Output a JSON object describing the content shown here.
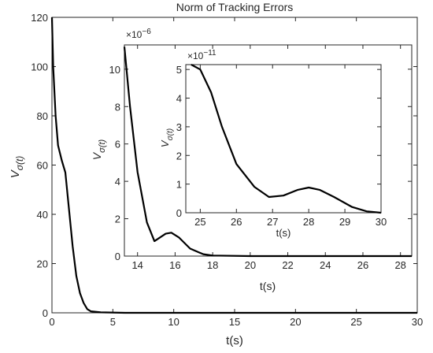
{
  "chart_data": [
    {
      "type": "line",
      "title": "Norm of Tracking Errors",
      "xlabel": "t(s)",
      "ylabel": "V",
      "ylabel_subscript": "σ(t)",
      "x": [
        0,
        0.1,
        0.3,
        0.5,
        0.8,
        1.1,
        1.4,
        1.7,
        2.0,
        2.3,
        2.6,
        2.9,
        3.2,
        4,
        6,
        10,
        30
      ],
      "values": [
        120,
        100,
        80,
        68,
        62,
        57,
        42,
        27,
        15,
        8,
        4,
        1.5,
        0.6,
        0.2,
        0,
        0,
        0
      ],
      "color": "#000000",
      "xlim": [
        0,
        30
      ],
      "ylim": [
        0,
        120
      ],
      "xticks": [
        0,
        5,
        10,
        15,
        20,
        25,
        30
      ],
      "yticks": [
        0,
        20,
        40,
        60,
        80,
        100,
        120
      ]
    },
    {
      "type": "line",
      "xlabel": "t(s)",
      "ylabel": "V",
      "ylabel_subscript": "σ(t)",
      "y_multiplier": "×10",
      "y_exponent": "−6",
      "x": [
        13.3,
        13.6,
        14,
        14.5,
        14.9,
        15.2,
        15.5,
        15.8,
        16.2,
        16.8,
        17.5,
        18,
        20,
        28.6
      ],
      "values": [
        11.2,
        8,
        4.5,
        1.8,
        0.8,
        1.0,
        1.2,
        1.25,
        1.0,
        0.4,
        0.1,
        0.03,
        0,
        0
      ],
      "color": "#000000",
      "xlim": [
        13.3,
        28.6
      ],
      "ylim": [
        0,
        11.3
      ],
      "xticks": [
        14,
        16,
        18,
        20,
        22,
        24,
        26,
        28
      ],
      "yticks": [
        0,
        2,
        4,
        6,
        8,
        10
      ]
    },
    {
      "type": "line",
      "xlabel": "t(s)",
      "ylabel": "V",
      "ylabel_subscript": "σ(t)",
      "y_multiplier": "×10",
      "y_exponent": "−11",
      "x": [
        24.75,
        25,
        25.3,
        25.6,
        26,
        26.5,
        26.9,
        27.3,
        27.7,
        28,
        28.3,
        28.7,
        29.2,
        29.6,
        30
      ],
      "values": [
        5.17,
        5.0,
        4.2,
        3.0,
        1.7,
        0.9,
        0.55,
        0.6,
        0.8,
        0.88,
        0.8,
        0.55,
        0.2,
        0.05,
        0
      ],
      "color": "#000000",
      "xlim": [
        24.6,
        30
      ],
      "ylim": [
        0,
        5.17
      ],
      "xticks": [
        25,
        26,
        27,
        28,
        29,
        30
      ],
      "yticks": [
        0,
        1,
        2,
        3,
        4,
        5
      ]
    }
  ]
}
